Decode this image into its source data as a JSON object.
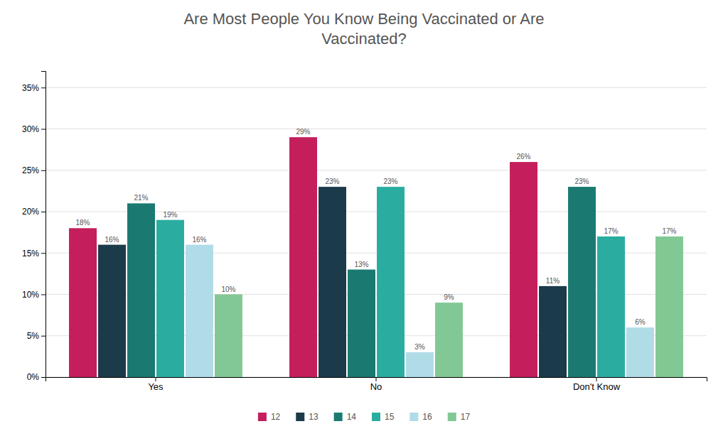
{
  "chart_data": {
    "type": "bar",
    "title": "Are Most People You Know Being Vaccinated or Are\nVaccinated?",
    "categories": [
      "Yes",
      "No",
      "Don't Know"
    ],
    "series": [
      {
        "name": "12",
        "color": "#C41E5C",
        "values": [
          18,
          29,
          26
        ],
        "value_labels": [
          "18%",
          "29%",
          "26%"
        ]
      },
      {
        "name": "13",
        "color": "#1B3A4A",
        "values": [
          16,
          23,
          11
        ],
        "value_labels": [
          "16%",
          "23%",
          "11%"
        ]
      },
      {
        "name": "14",
        "color": "#1A7A72",
        "values": [
          21,
          13,
          23
        ],
        "value_labels": [
          "21%",
          "13%",
          "23%"
        ]
      },
      {
        "name": "15",
        "color": "#2AADA0",
        "values": [
          19,
          23,
          17
        ],
        "value_labels": [
          "19%",
          "23%",
          "17%"
        ]
      },
      {
        "name": "16",
        "color": "#B0DCE8",
        "values": [
          16,
          3,
          6
        ],
        "value_labels": [
          "16%",
          "3%",
          "6%"
        ]
      },
      {
        "name": "17",
        "color": "#82C895",
        "values": [
          10,
          9,
          17
        ],
        "value_labels": [
          "10%",
          "9%",
          "17%"
        ]
      }
    ],
    "ylim": [
      0,
      37
    ],
    "yticks": [
      {
        "value": 0,
        "label": "0%"
      },
      {
        "value": 5,
        "label": "5%"
      },
      {
        "value": 10,
        "label": "10%"
      },
      {
        "value": 15,
        "label": "15%"
      },
      {
        "value": 20,
        "label": "20%"
      },
      {
        "value": 25,
        "label": "25%"
      },
      {
        "value": 30,
        "label": "30%"
      },
      {
        "value": 35,
        "label": "35%"
      }
    ],
    "grid": true,
    "legend": "bottom",
    "data_labels": true
  }
}
